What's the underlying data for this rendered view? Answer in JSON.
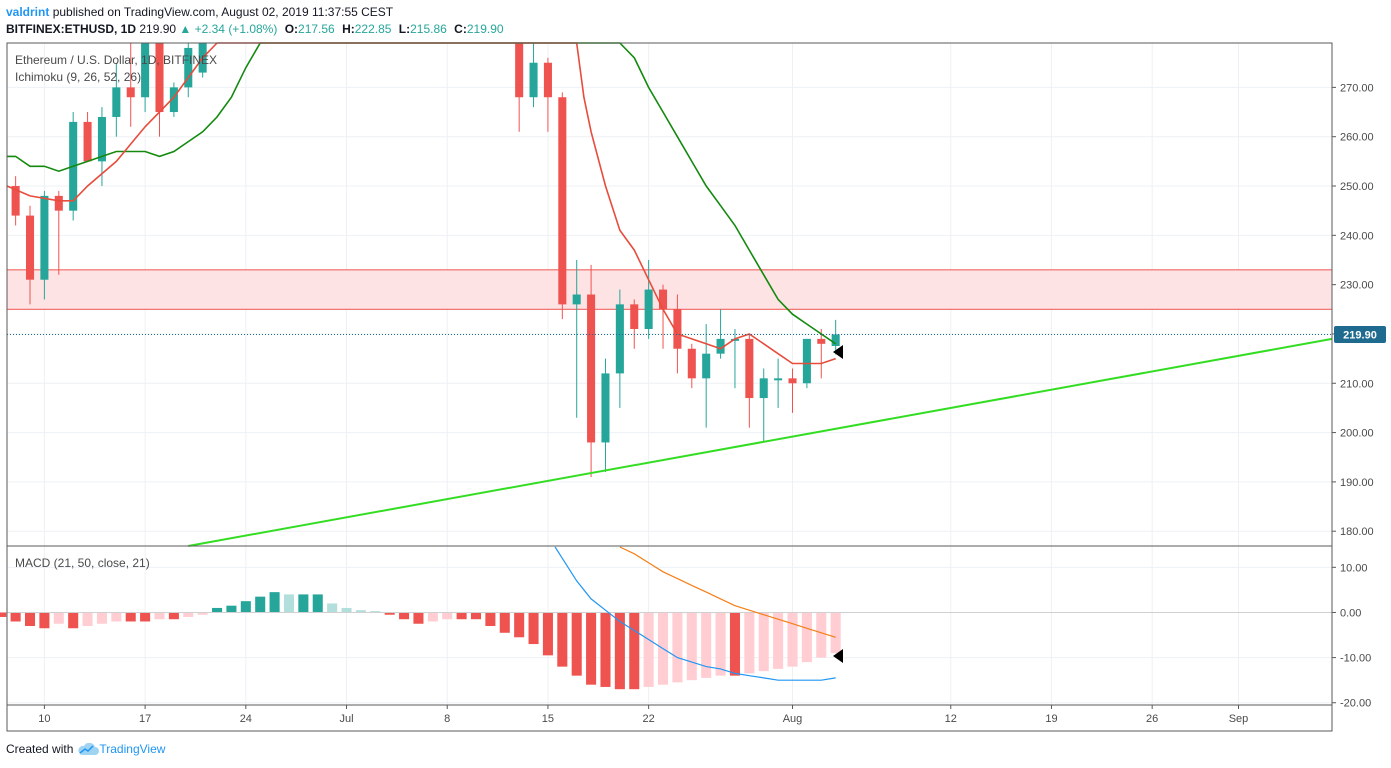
{
  "header": {
    "user": "valdrint",
    "published": "published on TradingView.com, August 02, 2019 11:37:55 CEST",
    "symbol": "BITFINEX:ETHUSD, 1D",
    "last": "219.90",
    "change": "▲ +2.34 (+1.08%)",
    "o_label": "O:",
    "o_value": "217.56",
    "h_label": "H:",
    "h_value": "222.85",
    "l_label": "L:",
    "l_value": "215.86",
    "c_label": "C:",
    "c_value": "219.90"
  },
  "footer": {
    "created_with": "Created with",
    "brand": "TradingView"
  },
  "colors": {
    "up": "#26a69a",
    "down": "#ef5350",
    "ma_fast": "#e74c3c",
    "ma_slow": "#138a0e",
    "trendline": "#33dd22",
    "zone": "#f8b8b8",
    "macd_line": "#2196f3",
    "signal_line": "#f57f17",
    "hist_up": "#26a69a",
    "hist_up_light": "#b2dfdb",
    "hist_down": "#ef5350",
    "hist_down_light": "#ffcdd2",
    "price_label": "#1e6b8f"
  },
  "chart_data": [
    {
      "type": "candlestick",
      "title": "Ethereum / U.S. Dollar, 1D, BITFINEX",
      "indicator_label": "Ichimoku (9, 26, 52, 26)",
      "ylim": [
        177,
        279
      ],
      "y_ticks": [
        180,
        190,
        200,
        210,
        220,
        230,
        240,
        250,
        260,
        270
      ],
      "y_tick_labels": [
        "180.00",
        "190.00",
        "200.00",
        "210.00",
        "220.00",
        "230.00",
        "240.00",
        "250.00",
        "260.00",
        "270.00"
      ],
      "last_price": 219.9,
      "last_price_label": "219.90",
      "x_ticks": [
        {
          "day": 10,
          "label": "10"
        },
        {
          "day": 17,
          "label": "17"
        },
        {
          "day": 24,
          "label": "24"
        },
        {
          "day": 31,
          "label": "Jul"
        },
        {
          "day": 38,
          "label": "8"
        },
        {
          "day": 45,
          "label": "15"
        },
        {
          "day": 52,
          "label": "22"
        },
        {
          "day": 62,
          "label": "Aug"
        },
        {
          "day": 73,
          "label": "12"
        },
        {
          "day": 80,
          "label": "19"
        },
        {
          "day": 87,
          "label": "26"
        },
        {
          "day": 93,
          "label": "Sep"
        }
      ],
      "x_domain": [
        7.4,
        99.5
      ],
      "candles": [
        {
          "d": 8,
          "o": 250,
          "h": 252,
          "l": 242,
          "c": 244
        },
        {
          "d": 9,
          "o": 244,
          "h": 246,
          "l": 226,
          "c": 231
        },
        {
          "d": 10,
          "o": 231,
          "h": 249,
          "l": 227,
          "c": 248
        },
        {
          "d": 11,
          "o": 248,
          "h": 249,
          "l": 232,
          "c": 245
        },
        {
          "d": 12,
          "o": 245,
          "h": 265,
          "l": 243,
          "c": 263
        },
        {
          "d": 13,
          "o": 263,
          "h": 265,
          "l": 255,
          "c": 255
        },
        {
          "d": 14,
          "o": 255,
          "h": 266,
          "l": 250,
          "c": 264
        },
        {
          "d": 15,
          "o": 264,
          "h": 275,
          "l": 260,
          "c": 270
        },
        {
          "d": 16,
          "o": 270,
          "h": 279,
          "l": 262,
          "c": 268
        },
        {
          "d": 17,
          "o": 268,
          "h": 279,
          "l": 265,
          "c": 279
        },
        {
          "d": 18,
          "o": 279,
          "h": 279,
          "l": 260,
          "c": 265
        },
        {
          "d": 19,
          "o": 265,
          "h": 271,
          "l": 264,
          "c": 270
        },
        {
          "d": 20,
          "o": 270,
          "h": 279,
          "l": 268,
          "c": 278
        },
        {
          "d": 21,
          "o": 273,
          "h": 279,
          "l": 272,
          "c": 279
        },
        {
          "d": 43,
          "o": 279,
          "h": 279,
          "l": 261,
          "c": 268
        },
        {
          "d": 44,
          "o": 268,
          "h": 279,
          "l": 266,
          "c": 275
        },
        {
          "d": 45,
          "o": 275,
          "h": 276,
          "l": 261,
          "c": 268
        },
        {
          "d": 46,
          "o": 268,
          "h": 269,
          "l": 223,
          "c": 226
        },
        {
          "d": 47,
          "o": 226,
          "h": 235,
          "l": 203,
          "c": 228
        },
        {
          "d": 48,
          "o": 228,
          "h": 234,
          "l": 191,
          "c": 198
        },
        {
          "d": 49,
          "o": 198,
          "h": 215,
          "l": 192,
          "c": 212
        },
        {
          "d": 50,
          "o": 212,
          "h": 229,
          "l": 205,
          "c": 226
        },
        {
          "d": 51,
          "o": 226,
          "h": 227,
          "l": 217,
          "c": 221
        },
        {
          "d": 52,
          "o": 221,
          "h": 235,
          "l": 219,
          "c": 229
        },
        {
          "d": 53,
          "o": 229,
          "h": 230,
          "l": 217,
          "c": 225
        },
        {
          "d": 54,
          "o": 225,
          "h": 228,
          "l": 212,
          "c": 217
        },
        {
          "d": 55,
          "o": 217,
          "h": 218,
          "l": 209,
          "c": 211
        },
        {
          "d": 56,
          "o": 211,
          "h": 222,
          "l": 201,
          "c": 216
        },
        {
          "d": 57,
          "o": 216,
          "h": 225,
          "l": 215,
          "c": 219
        },
        {
          "d": 58,
          "o": 219,
          "h": 221,
          "l": 209,
          "c": 219
        },
        {
          "d": 59,
          "o": 219,
          "h": 220,
          "l": 201,
          "c": 207
        },
        {
          "d": 60,
          "o": 207,
          "h": 213,
          "l": 198,
          "c": 211
        },
        {
          "d": 61,
          "o": 211,
          "h": 215,
          "l": 205,
          "c": 211
        },
        {
          "d": 62,
          "o": 211,
          "h": 213,
          "l": 204,
          "c": 210
        },
        {
          "d": 63,
          "o": 210,
          "h": 219,
          "l": 209,
          "c": 219
        },
        {
          "d": 64,
          "o": 219,
          "h": 221,
          "l": 211,
          "c": 218
        },
        {
          "d": 65,
          "o": 217.56,
          "h": 222.85,
          "l": 215.86,
          "c": 219.9
        }
      ],
      "ma_fast": [
        {
          "d": 7.4,
          "v": 250
        },
        {
          "d": 9,
          "v": 248
        },
        {
          "d": 11,
          "v": 247
        },
        {
          "d": 12,
          "v": 247
        },
        {
          "d": 13,
          "v": 250
        },
        {
          "d": 15,
          "v": 255
        },
        {
          "d": 17,
          "v": 262
        },
        {
          "d": 19,
          "v": 268
        },
        {
          "d": 20,
          "v": 272
        },
        {
          "d": 21,
          "v": 276
        },
        {
          "d": 22,
          "v": 279
        },
        {
          "d": 47,
          "v": 279
        },
        {
          "d": 47.5,
          "v": 268
        },
        {
          "d": 48,
          "v": 261
        },
        {
          "d": 49,
          "v": 250
        },
        {
          "d": 50,
          "v": 241
        },
        {
          "d": 51,
          "v": 237
        },
        {
          "d": 52,
          "v": 231
        },
        {
          "d": 53,
          "v": 225
        },
        {
          "d": 54,
          "v": 220
        },
        {
          "d": 55,
          "v": 219
        },
        {
          "d": 56,
          "v": 218
        },
        {
          "d": 57,
          "v": 217
        },
        {
          "d": 58,
          "v": 219
        },
        {
          "d": 59,
          "v": 220
        },
        {
          "d": 60,
          "v": 218
        },
        {
          "d": 61,
          "v": 216
        },
        {
          "d": 62,
          "v": 214
        },
        {
          "d": 63,
          "v": 214
        },
        {
          "d": 64,
          "v": 214
        },
        {
          "d": 65,
          "v": 215
        }
      ],
      "ma_slow": [
        {
          "d": 7.4,
          "v": 256
        },
        {
          "d": 8,
          "v": 256
        },
        {
          "d": 9,
          "v": 254
        },
        {
          "d": 10,
          "v": 254
        },
        {
          "d": 11,
          "v": 253
        },
        {
          "d": 12,
          "v": 254
        },
        {
          "d": 13,
          "v": 255
        },
        {
          "d": 14,
          "v": 256
        },
        {
          "d": 15,
          "v": 257
        },
        {
          "d": 16,
          "v": 257
        },
        {
          "d": 17,
          "v": 257
        },
        {
          "d": 18,
          "v": 256
        },
        {
          "d": 19,
          "v": 257
        },
        {
          "d": 20,
          "v": 259
        },
        {
          "d": 21,
          "v": 261
        },
        {
          "d": 22,
          "v": 264
        },
        {
          "d": 23,
          "v": 268
        },
        {
          "d": 24,
          "v": 274
        },
        {
          "d": 25,
          "v": 279
        },
        {
          "d": 50,
          "v": 279
        },
        {
          "d": 51,
          "v": 276
        },
        {
          "d": 52,
          "v": 270
        },
        {
          "d": 53,
          "v": 265
        },
        {
          "d": 54,
          "v": 260
        },
        {
          "d": 55,
          "v": 255
        },
        {
          "d": 56,
          "v": 250
        },
        {
          "d": 57,
          "v": 246
        },
        {
          "d": 58,
          "v": 242
        },
        {
          "d": 59,
          "v": 237
        },
        {
          "d": 60,
          "v": 232
        },
        {
          "d": 61,
          "v": 227
        },
        {
          "d": 62,
          "v": 224
        },
        {
          "d": 63,
          "v": 222
        },
        {
          "d": 64,
          "v": 220
        },
        {
          "d": 65,
          "v": 218
        }
      ],
      "zone": [
        225,
        233
      ],
      "trendline": [
        {
          "d": 20,
          "v": 177
        },
        {
          "d": 99.5,
          "v": 219
        }
      ]
    },
    {
      "type": "histogram",
      "title": "MACD (21, 50, close, 21)",
      "ylim": [
        -20.5,
        14.5
      ],
      "y_ticks": [
        -20,
        -10,
        0,
        10
      ],
      "y_tick_labels": [
        "-20.00",
        "-10.00",
        "0.00",
        "10.00"
      ],
      "histogram": [
        {
          "d": 7,
          "v": -1
        },
        {
          "d": 8,
          "v": -2
        },
        {
          "d": 9,
          "v": -3
        },
        {
          "d": 10,
          "v": -3.5
        },
        {
          "d": 11,
          "v": -2.5
        },
        {
          "d": 12,
          "v": -3.5
        },
        {
          "d": 13,
          "v": -3
        },
        {
          "d": 14,
          "v": -2.5
        },
        {
          "d": 15,
          "v": -2
        },
        {
          "d": 16,
          "v": -2
        },
        {
          "d": 17,
          "v": -2
        },
        {
          "d": 18,
          "v": -1.5
        },
        {
          "d": 19,
          "v": -1.5
        },
        {
          "d": 20,
          "v": -1
        },
        {
          "d": 21,
          "v": -0.5
        },
        {
          "d": 22,
          "v": 1
        },
        {
          "d": 23,
          "v": 1.5
        },
        {
          "d": 24,
          "v": 2.5
        },
        {
          "d": 25,
          "v": 3.5
        },
        {
          "d": 26,
          "v": 4.5
        },
        {
          "d": 27,
          "v": 4
        },
        {
          "d": 28,
          "v": 4
        },
        {
          "d": 29,
          "v": 4
        },
        {
          "d": 30,
          "v": 2
        },
        {
          "d": 31,
          "v": 1
        },
        {
          "d": 32,
          "v": 0.5
        },
        {
          "d": 33,
          "v": 0.3
        },
        {
          "d": 34,
          "v": -0.5
        },
        {
          "d": 35,
          "v": -1.5
        },
        {
          "d": 36,
          "v": -2.5
        },
        {
          "d": 37,
          "v": -2
        },
        {
          "d": 38,
          "v": -1.5
        },
        {
          "d": 39,
          "v": -1.5
        },
        {
          "d": 40,
          "v": -1.5
        },
        {
          "d": 41,
          "v": -3
        },
        {
          "d": 42,
          "v": -4.5
        },
        {
          "d": 43,
          "v": -5.5
        },
        {
          "d": 44,
          "v": -7
        },
        {
          "d": 45,
          "v": -9.5
        },
        {
          "d": 46,
          "v": -12
        },
        {
          "d": 47,
          "v": -14
        },
        {
          "d": 48,
          "v": -16
        },
        {
          "d": 49,
          "v": -16.5
        },
        {
          "d": 50,
          "v": -17
        },
        {
          "d": 51,
          "v": -17
        },
        {
          "d": 52,
          "v": -16.5
        },
        {
          "d": 53,
          "v": -16
        },
        {
          "d": 54,
          "v": -15.5
        },
        {
          "d": 55,
          "v": -15
        },
        {
          "d": 56,
          "v": -14.5
        },
        {
          "d": 57,
          "v": -14
        },
        {
          "d": 58,
          "v": -14
        },
        {
          "d": 59,
          "v": -13.5
        },
        {
          "d": 60,
          "v": -13
        },
        {
          "d": 61,
          "v": -12.5
        },
        {
          "d": 62,
          "v": -12
        },
        {
          "d": 63,
          "v": -11
        },
        {
          "d": 64,
          "v": -10
        },
        {
          "d": 65,
          "v": -9
        }
      ],
      "macd_line": [
        {
          "d": 45.5,
          "v": 14.5
        },
        {
          "d": 46,
          "v": 12
        },
        {
          "d": 47,
          "v": 7
        },
        {
          "d": 48,
          "v": 3
        },
        {
          "d": 49,
          "v": 0.5
        },
        {
          "d": 50,
          "v": -2
        },
        {
          "d": 51,
          "v": -4
        },
        {
          "d": 52,
          "v": -6
        },
        {
          "d": 53,
          "v": -8
        },
        {
          "d": 54,
          "v": -10
        },
        {
          "d": 55,
          "v": -11
        },
        {
          "d": 56,
          "v": -12
        },
        {
          "d": 57,
          "v": -12.5
        },
        {
          "d": 58,
          "v": -13.5
        },
        {
          "d": 59,
          "v": -14
        },
        {
          "d": 60,
          "v": -14.5
        },
        {
          "d": 61,
          "v": -15
        },
        {
          "d": 62,
          "v": -15
        },
        {
          "d": 63,
          "v": -15
        },
        {
          "d": 64,
          "v": -15
        },
        {
          "d": 65,
          "v": -14.5
        }
      ],
      "signal_line": [
        {
          "d": 50,
          "v": 14.5
        },
        {
          "d": 51,
          "v": 13
        },
        {
          "d": 52,
          "v": 11
        },
        {
          "d": 53,
          "v": 9
        },
        {
          "d": 54,
          "v": 7.5
        },
        {
          "d": 55,
          "v": 6
        },
        {
          "d": 56,
          "v": 4.5
        },
        {
          "d": 57,
          "v": 3
        },
        {
          "d": 58,
          "v": 1.5
        },
        {
          "d": 59,
          "v": 0.5
        },
        {
          "d": 60,
          "v": -0.5
        },
        {
          "d": 61,
          "v": -1.5
        },
        {
          "d": 62,
          "v": -2.5
        },
        {
          "d": 63,
          "v": -3.5
        },
        {
          "d": 64,
          "v": -4.5
        },
        {
          "d": 65,
          "v": -5.5
        }
      ]
    }
  ]
}
